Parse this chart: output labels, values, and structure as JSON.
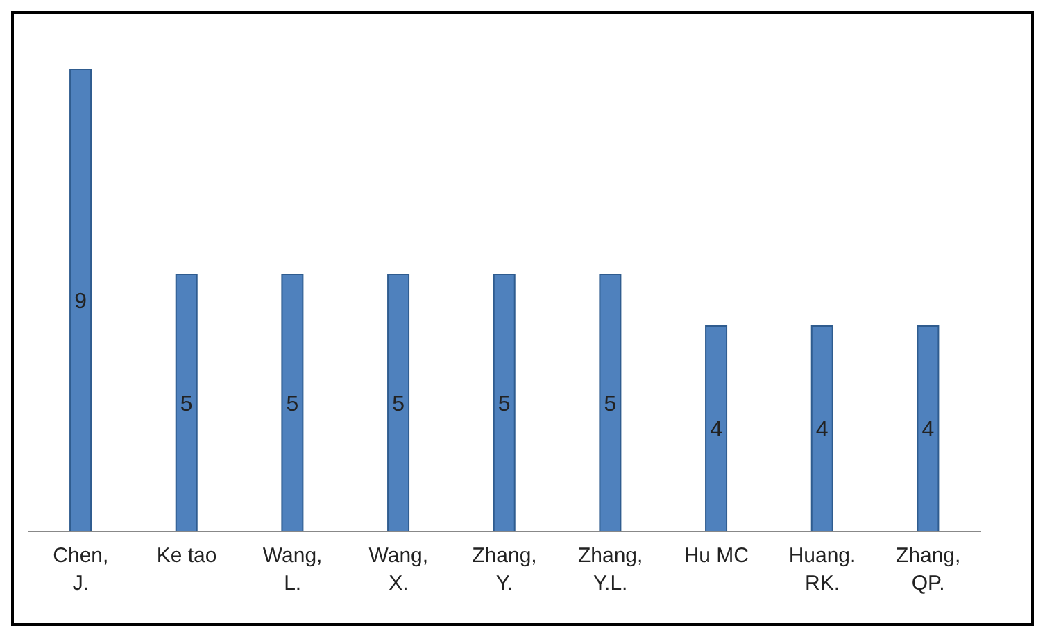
{
  "chart_data": {
    "type": "bar",
    "categories": [
      "Chen, J.",
      "Ke tao",
      "Wang, L.",
      "Wang, X.",
      "Zhang, Y.",
      "Zhang, Y.L.",
      "Hu MC",
      "Huang. RK.",
      "Zhang, QP."
    ],
    "values": [
      9,
      5,
      5,
      5,
      5,
      5,
      4,
      4,
      4
    ],
    "color": "#4f81bd",
    "data_labels": true,
    "grid": false,
    "legend": false
  }
}
